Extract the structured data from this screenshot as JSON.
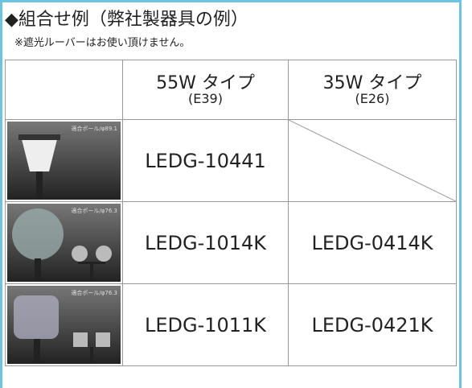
{
  "header": {
    "title": "◆組合せ例（弊社製器具の例）",
    "note": "※遮光ルーバーはお使い頂けません。"
  },
  "table": {
    "columns": [
      {
        "wattage": "55W タイプ",
        "base": "(E39)"
      },
      {
        "wattage": "35W タイプ",
        "base": "(E26)"
      }
    ],
    "rows": [
      {
        "pole": "適合ポール/φ89.1",
        "type55": "LEDG-10441"
      },
      {
        "pole": "適合ポール/φ76.3",
        "type55": "LEDG-1014K",
        "type35": "LEDG-0414K"
      },
      {
        "pole": "適合ポール/φ76.3",
        "type55": "LEDG-1011K",
        "type35": "LEDG-0421K"
      }
    ]
  }
}
